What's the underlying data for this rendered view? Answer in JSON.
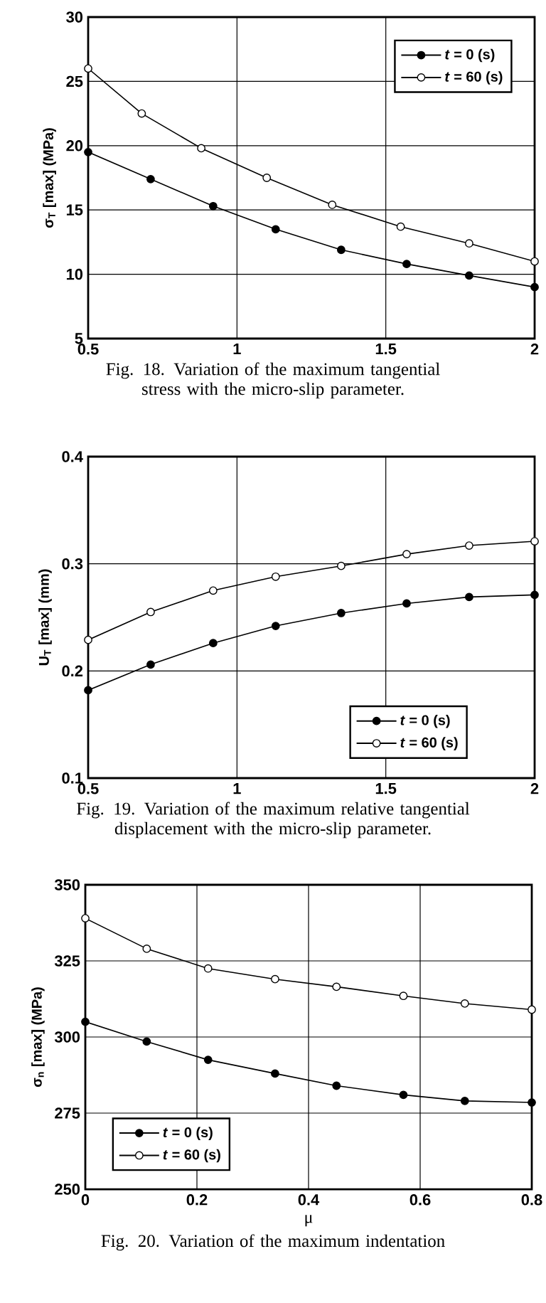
{
  "chart_data": [
    {
      "type": "line",
      "ylabel": "σ$_{T}$ [max] (MPa)",
      "annotations": [
        "Fig. 18. Variation of the maximum tangential stress with the micro-slip parameter."
      ],
      "xlim": [
        0.5,
        2
      ],
      "ylim": [
        5,
        30
      ],
      "xticks": [
        0.5,
        1,
        1.5,
        2
      ],
      "yticks": [
        5,
        10,
        15,
        20,
        25,
        30
      ],
      "grid": true,
      "legend": "top right",
      "marker": "circle",
      "series": [
        {
          "name": "*t* = 0 (s)",
          "color": "#000000",
          "x": [
            0.5,
            0.71,
            0.92,
            1.13,
            1.35,
            1.57,
            1.78,
            2.0
          ],
          "values": [
            19.5,
            17.4,
            15.3,
            13.5,
            11.9,
            10.8,
            9.9,
            9.0
          ]
        },
        {
          "name": "*t* = 60 (s)",
          "color": "#000000",
          "x": [
            0.5,
            0.68,
            0.88,
            1.1,
            1.32,
            1.55,
            1.78,
            2.0
          ],
          "values": [
            26.0,
            22.5,
            19.8,
            17.5,
            15.4,
            13.7,
            12.4,
            11.0
          ]
        }
      ]
    },
    {
      "type": "line",
      "ylabel": "U$_{T}$ [max] (mm)",
      "annotations": [
        "Fig. 19. Variation of the maximum relative tangential displacement with the micro-slip parameter."
      ],
      "xlim": [
        0.5,
        2
      ],
      "ylim": [
        0.1,
        0.4
      ],
      "xticks": [
        0.5,
        1,
        1.5,
        2
      ],
      "yticks": [
        0.1,
        0.2,
        0.3,
        0.4
      ],
      "grid": true,
      "legend": "bottom right",
      "marker": "circle",
      "series": [
        {
          "name": "*t* = 0 (s)",
          "color": "#000000",
          "x": [
            0.5,
            0.71,
            0.92,
            1.13,
            1.35,
            1.57,
            1.78,
            2.0
          ],
          "values": [
            0.182,
            0.206,
            0.226,
            0.242,
            0.254,
            0.263,
            0.269,
            0.271
          ]
        },
        {
          "name": "*t* = 60 (s)",
          "color": "#000000",
          "x": [
            0.5,
            0.71,
            0.92,
            1.13,
            1.35,
            1.57,
            1.78,
            2.0
          ],
          "values": [
            0.229,
            0.255,
            0.275,
            0.288,
            0.298,
            0.309,
            0.317,
            0.321
          ]
        }
      ]
    },
    {
      "type": "line",
      "xlabel": "μ",
      "ylabel": "σ$_{n}$ [max] (MPa)",
      "annotations": [
        "Fig. 20. Variation of the maximum indentation"
      ],
      "xlim": [
        0,
        0.8
      ],
      "ylim": [
        250,
        350
      ],
      "xticks": [
        0,
        0.2,
        0.4,
        0.6,
        0.8
      ],
      "yticks": [
        250,
        275,
        300,
        325,
        350
      ],
      "grid": true,
      "legend": "bottom left",
      "marker": "circle",
      "series": [
        {
          "name": "*t* = 0 (s)",
          "color": "#000000",
          "x": [
            0,
            0.11,
            0.22,
            0.34,
            0.45,
            0.57,
            0.68,
            0.8
          ],
          "values": [
            305,
            298.5,
            292.5,
            288,
            284,
            281,
            279,
            278.5
          ]
        },
        {
          "name": "*t* = 60 (s)",
          "color": "#000000",
          "x": [
            0,
            0.11,
            0.22,
            0.34,
            0.45,
            0.57,
            0.68,
            0.8
          ],
          "values": [
            339,
            329,
            322.5,
            319,
            316.5,
            313.5,
            311,
            309
          ]
        }
      ]
    }
  ]
}
